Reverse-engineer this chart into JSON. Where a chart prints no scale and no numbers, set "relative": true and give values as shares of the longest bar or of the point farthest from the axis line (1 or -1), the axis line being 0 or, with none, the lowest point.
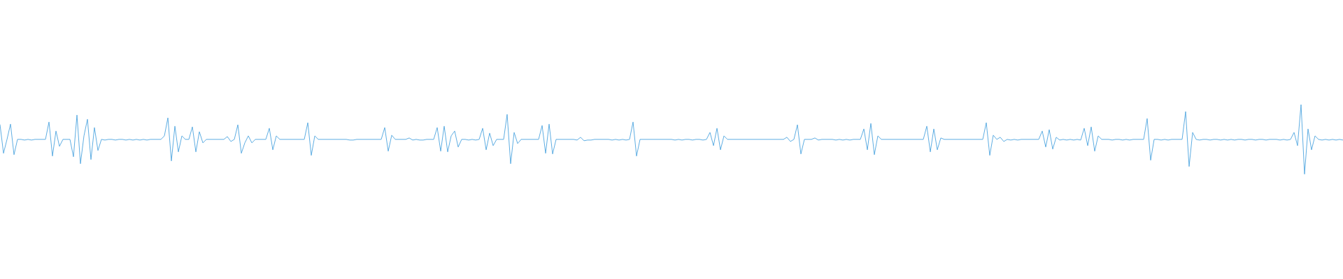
{
  "chart_data": {
    "type": "line",
    "relative": true,
    "marker": "none",
    "line_style": "solid",
    "categories": [
      null,
      null,
      null,
      null,
      null,
      null,
      null,
      null,
      null,
      null,
      null,
      null,
      null,
      null,
      null,
      null,
      null,
      null,
      null,
      null,
      null,
      null,
      null,
      null,
      null,
      null,
      null,
      null,
      null,
      null,
      null,
      null,
      null,
      null,
      null,
      null,
      null,
      null,
      null,
      null,
      null,
      null,
      null,
      null,
      null,
      null,
      null,
      null,
      null,
      null,
      null,
      null,
      null,
      null,
      null,
      null,
      null,
      null,
      null,
      null,
      null,
      null,
      null,
      null,
      null,
      null,
      null,
      null,
      null,
      null,
      null,
      null,
      null,
      null,
      null,
      null,
      null,
      null,
      null,
      null,
      null,
      null,
      null,
      null,
      null,
      null,
      null,
      null,
      null,
      null,
      null,
      null,
      null,
      null,
      null,
      null,
      null,
      null,
      null,
      null,
      null,
      null,
      null,
      null,
      null,
      null,
      null,
      null,
      null,
      null,
      null,
      null,
      null,
      null,
      null,
      null,
      null,
      null,
      null,
      null,
      null,
      null,
      null,
      null,
      null,
      null,
      null,
      null,
      null,
      null,
      null,
      null,
      null,
      null,
      null,
      null,
      null,
      null,
      null,
      null,
      null,
      null,
      null,
      null,
      null,
      null,
      null,
      null,
      null,
      null,
      null,
      null,
      null,
      null,
      null,
      null,
      null,
      null,
      null,
      null,
      null,
      null,
      null,
      null,
      null,
      null,
      null,
      null,
      null,
      null,
      null,
      null,
      null,
      null,
      null,
      null,
      null,
      null,
      null,
      null,
      null,
      null,
      null,
      null,
      null,
      null,
      null,
      null,
      null,
      null,
      null,
      null,
      null,
      null,
      null,
      null,
      null,
      null,
      null,
      null,
      null,
      null,
      null,
      null,
      null,
      null,
      null,
      null,
      null,
      null,
      null,
      null,
      null,
      null,
      null,
      null,
      null,
      null,
      null,
      null,
      null,
      null,
      null,
      null,
      null,
      null,
      null,
      null,
      null,
      null,
      null,
      null,
      null,
      null,
      null,
      null,
      null,
      null,
      null,
      null,
      null,
      null,
      null,
      null,
      null,
      null,
      null,
      null,
      null,
      null,
      null,
      null,
      null,
      null,
      null,
      null,
      null,
      null,
      null,
      null,
      null,
      null,
      null,
      null,
      null,
      null,
      null,
      null,
      null,
      null,
      null,
      null,
      null,
      null,
      null,
      null,
      null,
      null,
      null,
      null,
      null,
      null,
      null,
      null,
      null,
      null,
      null,
      null,
      null,
      null,
      null,
      null,
      null,
      null,
      null,
      null,
      null,
      null,
      null,
      null,
      null,
      null,
      null,
      null,
      null,
      null,
      null,
      null,
      null,
      null,
      null,
      null,
      null,
      null,
      null,
      null,
      null,
      null,
      null,
      null,
      null,
      null,
      null,
      null,
      null,
      null,
      null,
      null,
      null,
      null,
      null,
      null,
      null,
      null,
      null,
      null,
      null,
      null,
      null,
      null,
      null,
      null,
      null,
      null,
      null,
      null,
      null,
      null,
      null,
      null,
      null,
      null,
      null,
      null,
      null,
      null,
      null,
      null,
      null,
      null,
      null,
      null,
      null,
      null,
      null,
      null,
      null,
      null,
      null,
      null,
      null,
      null,
      null,
      null,
      null,
      null,
      null,
      null,
      null,
      null,
      null,
      null,
      null,
      null,
      null
    ],
    "series": [
      {
        "color": "#5dade2",
        "values": [
          0.71,
          0.3,
          0.5,
          0.72,
          0.28,
          0.5,
          0.5,
          0.49,
          0.5,
          0.49,
          0.5,
          0.5,
          0.5,
          0.5,
          0.75,
          0.26,
          0.62,
          0.4,
          0.5,
          0.5,
          0.5,
          0.25,
          0.85,
          0.15,
          0.55,
          0.79,
          0.21,
          0.67,
          0.34,
          0.5,
          0.49,
          0.5,
          0.5,
          0.49,
          0.5,
          0.5,
          0.49,
          0.5,
          0.49,
          0.5,
          0.49,
          0.5,
          0.49,
          0.5,
          0.5,
          0.5,
          0.5,
          0.55,
          0.81,
          0.19,
          0.69,
          0.32,
          0.55,
          0.5,
          0.5,
          0.68,
          0.32,
          0.61,
          0.45,
          0.5,
          0.5,
          0.5,
          0.5,
          0.5,
          0.5,
          0.54,
          0.47,
          0.5,
          0.71,
          0.3,
          0.45,
          0.55,
          0.45,
          0.5,
          0.5,
          0.5,
          0.5,
          0.66,
          0.35,
          0.55,
          0.5,
          0.5,
          0.5,
          0.5,
          0.5,
          0.5,
          0.5,
          0.5,
          0.74,
          0.27,
          0.55,
          0.5,
          0.5,
          0.5,
          0.5,
          0.5,
          0.5,
          0.5,
          0.5,
          0.5,
          0.49,
          0.49,
          0.5,
          0.5,
          0.5,
          0.5,
          0.5,
          0.5,
          0.5,
          0.5,
          0.67,
          0.33,
          0.56,
          0.5,
          0.5,
          0.5,
          0.5,
          0.52,
          0.49,
          0.5,
          0.49,
          0.49,
          0.5,
          0.5,
          0.5,
          0.67,
          0.33,
          0.69,
          0.32,
          0.55,
          0.62,
          0.39,
          0.5,
          0.5,
          0.49,
          0.5,
          0.49,
          0.5,
          0.66,
          0.35,
          0.59,
          0.41,
          0.5,
          0.5,
          0.5,
          0.86,
          0.15,
          0.6,
          0.44,
          0.5,
          0.5,
          0.5,
          0.5,
          0.5,
          0.5,
          0.7,
          0.3,
          0.72,
          0.29,
          0.5,
          0.5,
          0.5,
          0.5,
          0.5,
          0.5,
          0.49,
          0.53,
          0.48,
          0.49,
          0.49,
          0.5,
          0.5,
          0.5,
          0.5,
          0.5,
          0.49,
          0.5,
          0.49,
          0.5,
          0.49,
          0.5,
          0.75,
          0.26,
          0.5,
          0.5,
          0.5,
          0.5,
          0.5,
          0.5,
          0.5,
          0.5,
          0.5,
          0.5,
          0.49,
          0.5,
          0.49,
          0.5,
          0.5,
          0.49,
          0.5,
          0.5,
          0.49,
          0.5,
          0.6,
          0.41,
          0.66,
          0.35,
          0.55,
          0.5,
          0.5,
          0.5,
          0.5,
          0.5,
          0.5,
          0.5,
          0.5,
          0.5,
          0.5,
          0.5,
          0.5,
          0.5,
          0.5,
          0.5,
          0.5,
          0.5,
          0.53,
          0.47,
          0.5,
          0.71,
          0.29,
          0.5,
          0.5,
          0.5,
          0.52,
          0.49,
          0.5,
          0.5,
          0.5,
          0.5,
          0.49,
          0.5,
          0.49,
          0.5,
          0.49,
          0.5,
          0.5,
          0.5,
          0.65,
          0.35,
          0.73,
          0.28,
          0.55,
          0.5,
          0.5,
          0.5,
          0.5,
          0.5,
          0.5,
          0.5,
          0.5,
          0.5,
          0.5,
          0.5,
          0.5,
          0.5,
          0.69,
          0.32,
          0.65,
          0.35,
          0.52,
          0.5,
          0.5,
          0.5,
          0.5,
          0.5,
          0.5,
          0.5,
          0.5,
          0.5,
          0.5,
          0.5,
          0.5,
          0.74,
          0.27,
          0.56,
          0.5,
          0.53,
          0.47,
          0.5,
          0.49,
          0.5,
          0.49,
          0.5,
          0.5,
          0.5,
          0.5,
          0.5,
          0.5,
          0.62,
          0.39,
          0.64,
          0.36,
          0.53,
          0.49,
          0.5,
          0.49,
          0.5,
          0.49,
          0.5,
          0.49,
          0.66,
          0.41,
          0.68,
          0.33,
          0.55,
          0.5,
          0.5,
          0.5,
          0.49,
          0.5,
          0.5,
          0.49,
          0.5,
          0.49,
          0.5,
          0.5,
          0.5,
          0.5,
          0.8,
          0.2,
          0.5,
          0.5,
          0.49,
          0.5,
          0.49,
          0.5,
          0.5,
          0.5,
          0.5,
          0.9,
          0.11,
          0.6,
          0.5,
          0.49,
          0.5,
          0.5,
          0.49,
          0.5,
          0.5,
          0.49,
          0.5,
          0.49,
          0.5,
          0.49,
          0.5,
          0.5,
          0.49,
          0.5,
          0.5,
          0.49,
          0.5,
          0.5,
          0.49,
          0.5,
          0.5,
          0.5,
          0.49,
          0.5,
          0.49,
          0.5,
          0.6,
          0.41,
          1,
          0,
          0.65,
          0.35,
          0.55,
          0.5,
          0.49,
          0.5,
          0.49,
          0.5,
          0.49,
          0.5,
          0.49
        ]
      }
    ]
  }
}
